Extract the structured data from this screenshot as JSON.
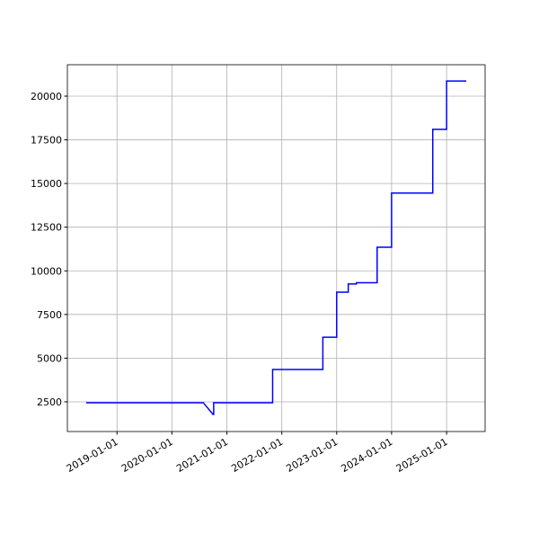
{
  "chart_data": {
    "type": "line",
    "x": [
      "2018-06-10",
      "2020-07-28",
      "2020-10-01",
      "2020-10-05",
      "2020-10-05",
      "2021-09-24",
      "2021-11-01",
      "2021-11-01",
      "2022-10-01",
      "2022-10-01",
      "2023-01-01",
      "2023-01-01",
      "2023-03-19",
      "2023-03-19",
      "2023-05-12",
      "2023-05-12",
      "2023-09-27",
      "2023-09-27",
      "2024-01-01",
      "2024-01-01",
      "2024-10-01",
      "2024-10-01",
      "2025-01-01",
      "2025-01-01",
      "2025-05-12"
    ],
    "series": [
      {
        "color": "#0000ff",
        "values": [
          2450,
          2450,
          1780,
          1780,
          2450,
          2450,
          2450,
          4350,
          4350,
          6200,
          6200,
          8780,
          8780,
          9250,
          9250,
          9320,
          9320,
          11350,
          11350,
          14450,
          14450,
          18100,
          18100,
          20870,
          20870
        ]
      }
    ],
    "xlim": [
      "2018-02-05",
      "2025-09-14"
    ],
    "xticks": [
      "2019-01-01",
      "2020-01-01",
      "2021-01-01",
      "2022-01-01",
      "2023-01-01",
      "2024-01-01",
      "2025-01-01"
    ],
    "ylim": [
      800,
      21800
    ],
    "yticks": [
      2500,
      5000,
      7500,
      10000,
      12500,
      15000,
      17500,
      20000
    ],
    "grid": true
  }
}
